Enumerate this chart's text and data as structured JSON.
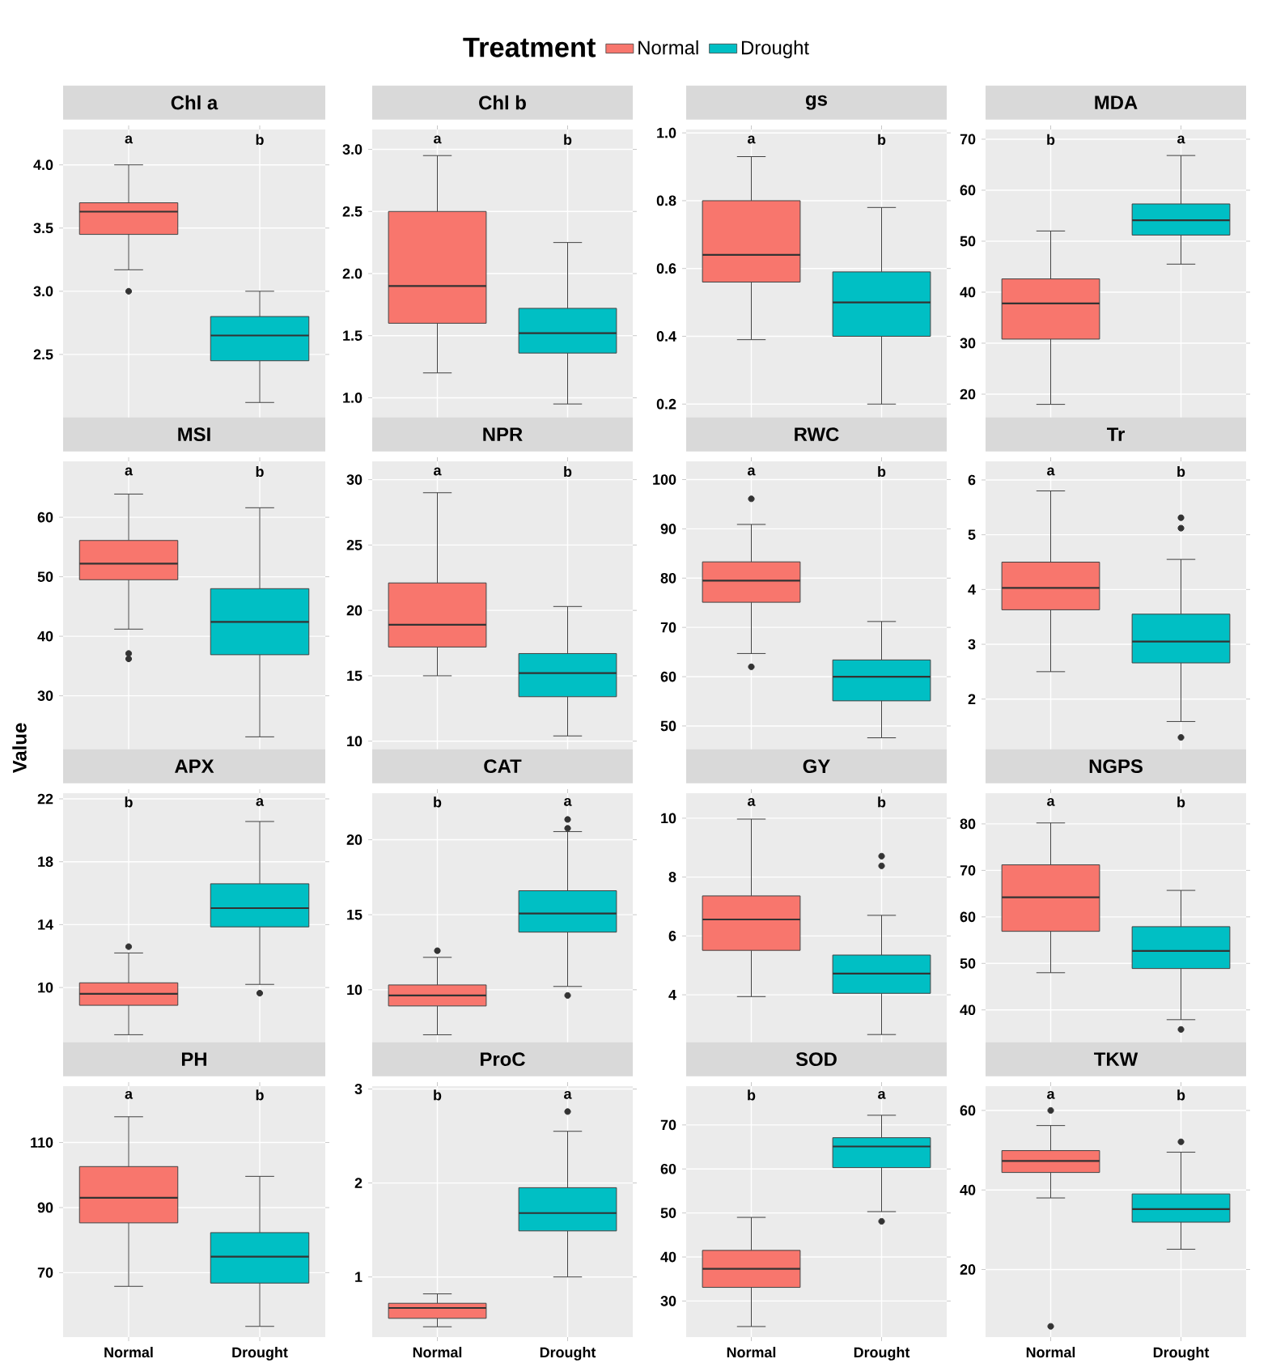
{
  "chart_data": [
    {
      "type": "box",
      "title": "Chl a",
      "categories": [
        null,
        null
      ],
      "grid": true,
      "legend": "top",
      "legend_title": "Treatment",
      "ylim": [
        2.0,
        4.28
      ],
      "yticks": [
        2.5,
        {
          "value": 3,
          "label": "3.0"
        },
        3.5,
        {
          "value": 4,
          "label": "4.0"
        }
      ],
      "series": [
        {
          "name": "Normal",
          "color": "#f8766d",
          "boxes": [
            {
              "low": 3.17,
              "q1": 3.45,
              "median": 3.63,
              "q3": 3.7,
              "high": 4.0,
              "outliers": [
                3.0
              ]
            },
            null
          ]
        },
        {
          "name": "Drought",
          "color": "#00bfc4",
          "boxes": [
            null,
            {
              "low": 2.12,
              "q1": 2.45,
              "median": 2.65,
              "q3": 2.8,
              "high": 3.0
            }
          ]
        }
      ],
      "annotations": [
        "a",
        "b"
      ]
    },
    {
      "type": "box",
      "title": "Chl b",
      "categories": [
        null,
        null
      ],
      "grid": true,
      "ylim": [
        0.84,
        3.16
      ],
      "yticks": [
        {
          "value": 1,
          "label": "1.0"
        },
        1.5,
        {
          "value": 2,
          "label": "2.0"
        },
        2.5,
        {
          "value": 3,
          "label": "3.0"
        }
      ],
      "series": [
        {
          "color": "#f8766d",
          "boxes": [
            {
              "low": 1.2,
              "q1": 1.6,
              "median": 1.9,
              "q3": 2.5,
              "high": 2.95
            },
            null
          ]
        },
        {
          "color": "#00bfc4",
          "boxes": [
            null,
            {
              "low": 0.95,
              "q1": 1.36,
              "median": 1.52,
              "q3": 1.72,
              "high": 2.25
            }
          ]
        }
      ],
      "annotations": [
        "a",
        "b"
      ]
    },
    {
      "type": "box",
      "title": "gs",
      "categories": [
        null,
        null
      ],
      "grid": true,
      "ylim": [
        0.16,
        1.01
      ],
      "yticks": [
        0.2,
        0.4,
        0.6,
        0.8,
        {
          "value": 1,
          "label": "1.0"
        }
      ],
      "series": [
        {
          "color": "#f8766d",
          "boxes": [
            {
              "low": 0.39,
              "q1": 0.56,
              "median": 0.64,
              "q3": 0.8,
              "high": 0.93
            },
            null
          ]
        },
        {
          "color": "#00bfc4",
          "boxes": [
            null,
            {
              "low": 0.2,
              "q1": 0.4,
              "median": 0.5,
              "q3": 0.59,
              "high": 0.78
            }
          ]
        }
      ],
      "annotations": [
        "a",
        "b"
      ]
    },
    {
      "type": "box",
      "title": "MDA",
      "categories": [
        null,
        null
      ],
      "grid": true,
      "ylim": [
        15.4,
        71.9
      ],
      "yticks": [
        20,
        30,
        40,
        50,
        60,
        70
      ],
      "series": [
        {
          "color": "#f8766d",
          "boxes": [
            {
              "low": 18,
              "q1": 30.8,
              "median": 37.8,
              "q3": 42.6,
              "high": 52
            },
            null
          ]
        },
        {
          "color": "#00bfc4",
          "boxes": [
            null,
            {
              "low": 45.5,
              "q1": 51.2,
              "median": 54.1,
              "q3": 57.3,
              "high": 66.8
            }
          ]
        }
      ],
      "annotations": [
        "b",
        "a"
      ]
    },
    {
      "type": "box",
      "title": "MSI",
      "ylabel": "Value",
      "categories": [
        null,
        null
      ],
      "grid": true,
      "ylim": [
        20.7,
        69.4
      ],
      "yticks": [
        30,
        40,
        50,
        60
      ],
      "series": [
        {
          "color": "#f8766d",
          "boxes": [
            {
              "low": 41.2,
              "q1": 49.5,
              "median": 52.2,
              "q3": 56.1,
              "high": 63.9,
              "outliers": [
                37.1,
                36.2
              ]
            },
            null
          ]
        },
        {
          "color": "#00bfc4",
          "boxes": [
            null,
            {
              "low": 23.1,
              "q1": 36.9,
              "median": 42.4,
              "q3": 48.0,
              "high": 61.6
            }
          ]
        }
      ],
      "annotations": [
        "a",
        "b"
      ]
    },
    {
      "type": "box",
      "title": "NPR",
      "categories": [
        null,
        null
      ],
      "grid": true,
      "ylim": [
        9.24,
        31.4
      ],
      "yticks": [
        10,
        15,
        20,
        25,
        30
      ],
      "series": [
        {
          "color": "#f8766d",
          "boxes": [
            {
              "low": 15.0,
              "q1": 17.2,
              "median": 18.9,
              "q3": 22.1,
              "high": 29.0
            },
            null
          ]
        },
        {
          "color": "#00bfc4",
          "boxes": [
            null,
            {
              "low": 10.4,
              "q1": 13.4,
              "median": 15.2,
              "q3": 16.7,
              "high": 20.3
            }
          ]
        }
      ],
      "annotations": [
        "a",
        "b"
      ]
    },
    {
      "type": "box",
      "title": "RWC",
      "categories": [
        null,
        null
      ],
      "grid": true,
      "ylim": [
        44.9,
        103.7
      ],
      "yticks": [
        50,
        60,
        70,
        80,
        90,
        100
      ],
      "series": [
        {
          "color": "#f8766d",
          "boxes": [
            {
              "low": 64.7,
              "q1": 75.1,
              "median": 79.5,
              "q3": 83.3,
              "high": 90.9,
              "outliers": [
                96.1,
                62.0
              ]
            },
            null
          ]
        },
        {
          "color": "#00bfc4",
          "boxes": [
            null,
            {
              "low": 47.6,
              "q1": 55.1,
              "median": 60.0,
              "q3": 63.4,
              "high": 71.2
            }
          ]
        }
      ],
      "annotations": [
        "a",
        "b"
      ]
    },
    {
      "type": "box",
      "title": "Tr",
      "categories": [
        null,
        null
      ],
      "grid": true,
      "ylim": [
        1.05,
        6.34
      ],
      "yticks": [
        2,
        3,
        4,
        5,
        6
      ],
      "series": [
        {
          "color": "#f8766d",
          "boxes": [
            {
              "low": 2.5,
              "q1": 3.63,
              "median": 4.03,
              "q3": 4.5,
              "high": 5.8
            },
            null
          ]
        },
        {
          "color": "#00bfc4",
          "boxes": [
            null,
            {
              "low": 1.59,
              "q1": 2.66,
              "median": 3.05,
              "q3": 3.55,
              "high": 4.55,
              "outliers": [
                5.31,
                5.12,
                1.3
              ]
            }
          ]
        }
      ],
      "annotations": [
        "a",
        "b"
      ]
    },
    {
      "type": "box",
      "title": "APX",
      "categories": [
        null,
        null
      ],
      "grid": true,
      "ylim": [
        6.3,
        22.36
      ],
      "yticks": [
        10,
        14,
        18,
        22
      ],
      "series": [
        {
          "color": "#f8766d",
          "boxes": [
            {
              "low": 7.0,
              "q1": 8.87,
              "median": 9.6,
              "q3": 10.3,
              "high": 12.2,
              "outliers": [
                12.6
              ]
            },
            null
          ]
        },
        {
          "color": "#00bfc4",
          "boxes": [
            null,
            {
              "low": 10.2,
              "q1": 13.86,
              "median": 15.05,
              "q3": 16.6,
              "high": 20.56,
              "outliers": [
                9.64
              ]
            }
          ]
        }
      ],
      "annotations": [
        "b",
        "a"
      ]
    },
    {
      "type": "box",
      "title": "CAT",
      "categories": [
        null,
        null
      ],
      "grid": true,
      "ylim": [
        6.27,
        23.1
      ],
      "yticks": [
        10,
        15,
        20
      ],
      "series": [
        {
          "color": "#f8766d",
          "boxes": [
            {
              "low": 7.0,
              "q1": 8.92,
              "median": 9.62,
              "q3": 10.32,
              "high": 12.16,
              "outliers": [
                12.6
              ]
            },
            null
          ]
        },
        {
          "color": "#00bfc4",
          "boxes": [
            null,
            {
              "low": 10.22,
              "q1": 13.84,
              "median": 15.08,
              "q3": 16.6,
              "high": 20.54,
              "outliers": [
                21.35,
                20.76,
                9.62
              ]
            }
          ]
        }
      ],
      "annotations": [
        "b",
        "a"
      ]
    },
    {
      "type": "box",
      "title": "GY",
      "categories": [
        null,
        null
      ],
      "grid": true,
      "ylim": [
        2.27,
        10.85
      ],
      "yticks": [
        4,
        6,
        8,
        10
      ],
      "series": [
        {
          "color": "#f8766d",
          "boxes": [
            {
              "low": 3.94,
              "q1": 5.51,
              "median": 6.56,
              "q3": 7.36,
              "high": 9.97
            },
            null
          ]
        },
        {
          "color": "#00bfc4",
          "boxes": [
            null,
            {
              "low": 2.65,
              "q1": 4.05,
              "median": 4.72,
              "q3": 5.35,
              "high": 6.7,
              "outliers": [
                8.71,
                8.38
              ]
            }
          ]
        }
      ],
      "annotations": [
        "a",
        "b"
      ]
    },
    {
      "type": "box",
      "title": "NGPS",
      "categories": [
        null,
        null
      ],
      "grid": true,
      "ylim": [
        32.3,
        86.6
      ],
      "yticks": [
        40,
        50,
        60,
        70,
        80
      ],
      "series": [
        {
          "color": "#f8766d",
          "boxes": [
            {
              "low": 48.0,
              "q1": 56.9,
              "median": 64.2,
              "q3": 71.2,
              "high": 80.2
            },
            null
          ]
        },
        {
          "color": "#00bfc4",
          "boxes": [
            null,
            {
              "low": 37.9,
              "q1": 48.9,
              "median": 52.7,
              "q3": 57.9,
              "high": 65.7,
              "outliers": [
                35.8
              ]
            }
          ]
        }
      ],
      "annotations": [
        "a",
        "b"
      ]
    },
    {
      "type": "box",
      "title": "PH",
      "categories": [
        "Normal",
        "Drought"
      ],
      "grid": true,
      "ylim": [
        50.2,
        127.3
      ],
      "yticks": [
        70,
        90,
        110
      ],
      "series": [
        {
          "color": "#f8766d",
          "boxes": [
            {
              "low": 65.8,
              "q1": 85.3,
              "median": 93.0,
              "q3": 102.6,
              "high": 117.9
            },
            null
          ]
        },
        {
          "color": "#00bfc4",
          "boxes": [
            null,
            {
              "low": 53.5,
              "q1": 66.8,
              "median": 74.9,
              "q3": 82.3,
              "high": 99.6
            }
          ]
        }
      ],
      "annotations": [
        "a",
        "b"
      ]
    },
    {
      "type": "box",
      "title": "ProC",
      "categories": [
        "Normal",
        "Drought"
      ],
      "grid": true,
      "ylim": [
        0.36,
        3.03
      ],
      "yticks": [
        1,
        2,
        3
      ],
      "series": [
        {
          "color": "#f8766d",
          "boxes": [
            {
              "low": 0.47,
              "q1": 0.56,
              "median": 0.67,
              "q3": 0.72,
              "high": 0.82
            },
            null
          ]
        },
        {
          "color": "#00bfc4",
          "boxes": [
            null,
            {
              "low": 1.0,
              "q1": 1.49,
              "median": 1.68,
              "q3": 1.95,
              "high": 2.55,
              "outliers": [
                2.76
              ]
            }
          ]
        }
      ],
      "annotations": [
        "b",
        "a"
      ]
    },
    {
      "type": "box",
      "title": "SOD",
      "categories": [
        "Normal",
        "Drought"
      ],
      "grid": true,
      "ylim": [
        21.8,
        78.8
      ],
      "yticks": [
        30,
        40,
        50,
        60,
        70
      ],
      "series": [
        {
          "color": "#f8766d",
          "boxes": [
            {
              "low": 24.2,
              "q1": 33.1,
              "median": 37.3,
              "q3": 41.5,
              "high": 49.0
            },
            null
          ]
        },
        {
          "color": "#00bfc4",
          "boxes": [
            null,
            {
              "low": 50.3,
              "q1": 60.3,
              "median": 65.1,
              "q3": 67.1,
              "high": 72.2,
              "outliers": [
                48.1
              ]
            }
          ]
        }
      ],
      "annotations": [
        "b",
        "a"
      ]
    },
    {
      "type": "box",
      "title": "TKW",
      "categories": [
        "Normal",
        "Drought"
      ],
      "grid": true,
      "ylim": [
        3.0,
        66.1
      ],
      "yticks": [
        20,
        40,
        60
      ],
      "series": [
        {
          "color": "#f8766d",
          "boxes": [
            {
              "low": 38.0,
              "q1": 44.4,
              "median": 47.3,
              "q3": 49.9,
              "high": 56.2,
              "outliers": [
                60.0,
                5.7
              ]
            },
            null
          ]
        },
        {
          "color": "#00bfc4",
          "boxes": [
            null,
            {
              "low": 25.1,
              "q1": 31.9,
              "median": 35.2,
              "q3": 39.0,
              "high": 49.5,
              "outliers": [
                52.1
              ]
            }
          ]
        }
      ],
      "annotations": [
        "a",
        "b"
      ]
    }
  ]
}
